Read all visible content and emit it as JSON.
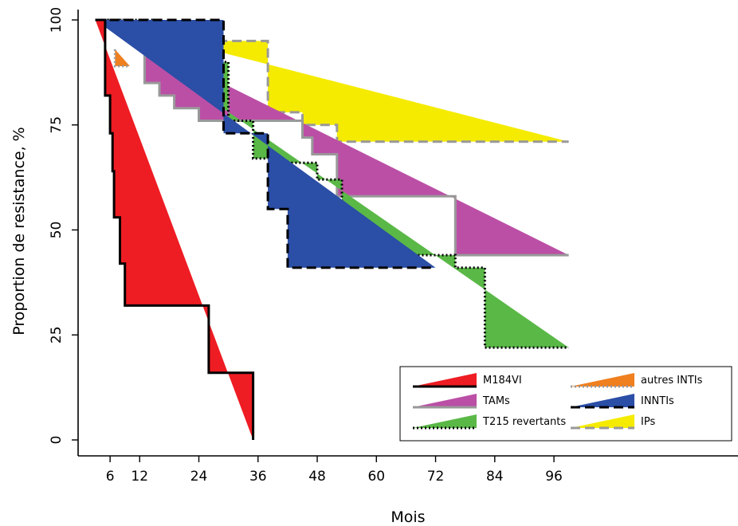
{
  "chart_data": {
    "type": "area",
    "title": "",
    "xlabel": "Mois",
    "ylabel": "Proportion de resistance, %",
    "xlim": [
      0,
      120
    ],
    "ylim": [
      0,
      100
    ],
    "xticks": [
      6,
      12,
      24,
      36,
      48,
      60,
      72,
      84,
      96
    ],
    "yticks": [
      0,
      25,
      50,
      75,
      100
    ],
    "grid": false,
    "legend_position": "bottom-right",
    "series": [
      {
        "name": "IPs",
        "fill": "#F5EB00",
        "line_color": "#999999",
        "line_style": "dashed",
        "step": [
          [
            3,
            100
          ],
          [
            12,
            100
          ],
          [
            12,
            95
          ],
          [
            38,
            95
          ],
          [
            38,
            78
          ],
          [
            45,
            78
          ],
          [
            45,
            75
          ],
          [
            52,
            75
          ],
          [
            52,
            71
          ],
          [
            99,
            71
          ]
        ],
        "diagonal": [
          [
            3,
            100
          ],
          [
            99,
            71
          ]
        ]
      },
      {
        "name": "TAMs",
        "fill": "#BB4FA6",
        "line_color": "#999999",
        "line_style": "solid",
        "step": [
          [
            3,
            100
          ],
          [
            10,
            100
          ],
          [
            10,
            95
          ],
          [
            13,
            95
          ],
          [
            13,
            85
          ],
          [
            16,
            85
          ],
          [
            16,
            82
          ],
          [
            19,
            82
          ],
          [
            19,
            79
          ],
          [
            24,
            79
          ],
          [
            24,
            76
          ],
          [
            45,
            76
          ],
          [
            45,
            72
          ],
          [
            47,
            72
          ],
          [
            47,
            68
          ],
          [
            52,
            68
          ],
          [
            52,
            58
          ],
          [
            76,
            58
          ],
          [
            76,
            44
          ],
          [
            99,
            44
          ]
        ],
        "diagonal": [
          [
            3,
            100
          ],
          [
            99,
            44
          ]
        ]
      },
      {
        "name": "T215 revertants",
        "fill": "#5AB847",
        "line_color": "#000000",
        "line_style": "dotted",
        "step": [
          [
            3,
            100
          ],
          [
            16,
            100
          ],
          [
            16,
            93
          ],
          [
            19,
            93
          ],
          [
            19,
            90
          ],
          [
            30,
            90
          ],
          [
            30,
            76
          ],
          [
            35,
            76
          ],
          [
            35,
            67
          ],
          [
            39,
            67
          ],
          [
            39,
            66
          ],
          [
            48,
            66
          ],
          [
            48,
            62
          ],
          [
            53,
            62
          ],
          [
            53,
            44
          ],
          [
            76,
            44
          ],
          [
            76,
            41
          ],
          [
            82,
            41
          ],
          [
            82,
            22
          ],
          [
            99,
            22
          ]
        ],
        "diagonal": [
          [
            3,
            100
          ],
          [
            99,
            22
          ]
        ]
      },
      {
        "name": "INNTIs",
        "fill": "#2B4EA6",
        "line_color": "#000000",
        "line_style": "dashed",
        "step": [
          [
            3,
            100
          ],
          [
            29,
            100
          ],
          [
            29,
            76
          ],
          [
            29,
            73
          ],
          [
            38,
            73
          ],
          [
            38,
            66
          ],
          [
            38,
            55
          ],
          [
            42,
            55
          ],
          [
            42,
            41
          ],
          [
            72,
            41
          ]
        ],
        "diagonal": [
          [
            3,
            100
          ],
          [
            72,
            41
          ]
        ]
      },
      {
        "name": "autres INTIs",
        "fill": "#F07F1E",
        "line_color": "#999999",
        "line_style": "dotted",
        "step": [
          [
            7,
            93
          ],
          [
            7,
            89
          ],
          [
            10,
            89
          ]
        ],
        "diagonal": [
          [
            7,
            93
          ],
          [
            10,
            89
          ]
        ]
      },
      {
        "name": "M184VI",
        "fill": "#EE1D23",
        "line_color": "#000000",
        "line_style": "solid",
        "step": [
          [
            3,
            100
          ],
          [
            5,
            100
          ],
          [
            5,
            82
          ],
          [
            6,
            82
          ],
          [
            6,
            73
          ],
          [
            6.5,
            73
          ],
          [
            6.5,
            64
          ],
          [
            6.8,
            64
          ],
          [
            6.8,
            53
          ],
          [
            8,
            53
          ],
          [
            8,
            42
          ],
          [
            9,
            42
          ],
          [
            9,
            32
          ],
          [
            26,
            32
          ],
          [
            26,
            16
          ],
          [
            35,
            16
          ],
          [
            35,
            0
          ]
        ],
        "diagonal": [
          [
            3,
            100
          ],
          [
            35,
            0
          ]
        ]
      }
    ],
    "legend": [
      [
        "M184VI",
        "autres INTIs"
      ],
      [
        "TAMs",
        "INNTIs"
      ],
      [
        "T215 revertants",
        "IPs"
      ]
    ]
  }
}
